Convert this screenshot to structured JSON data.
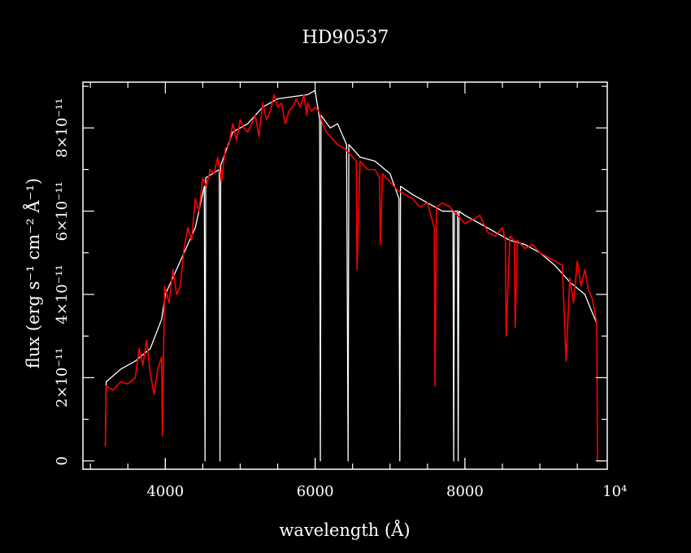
{
  "chart_data": {
    "type": "line",
    "title": "HD90537",
    "xlabel": "wavelength (Å)",
    "ylabel": "flux (erg s⁻¹ cm⁻² Å⁻¹)",
    "xlim": [
      2900,
      9900
    ],
    "ylim": [
      -2e-12,
      9.1e-11
    ],
    "x_ticks": [
      4000,
      6000,
      8000,
      10000
    ],
    "x_tick_labels": [
      "4000",
      "6000",
      "8000",
      "10⁴"
    ],
    "y_ticks": [
      0,
      2e-11,
      4e-11,
      6e-11,
      8e-11
    ],
    "y_tick_labels": [
      "0",
      "2×10⁻¹¹",
      "4×10⁻¹¹",
      "6×10⁻¹¹",
      "8×10⁻¹¹"
    ],
    "grid": false,
    "series": [
      {
        "color": "#ffffff",
        "x": [
          3200,
          3210,
          3400,
          3600,
          3800,
          3950,
          4000,
          4200,
          4400,
          4520,
          4530,
          4540,
          4720,
          4730,
          4740,
          4900,
          5100,
          5300,
          5500,
          5700,
          5900,
          6000,
          6060,
          6070,
          6080,
          6200,
          6300,
          6420,
          6440,
          6450,
          6600,
          6800,
          7000,
          7120,
          7130,
          7140,
          7300,
          7500,
          7700,
          7840,
          7850,
          7860,
          7900,
          7910,
          7920,
          8000,
          8200,
          8400,
          8600,
          8800,
          9000,
          9200,
          9400,
          9600,
          9760
        ],
        "y": [
          3.5e-12,
          1.9e-11,
          2.2e-11,
          2.4e-11,
          2.7e-11,
          3.4e-11,
          4e-11,
          4.8e-11,
          5.6e-11,
          6.6e-11,
          0.0,
          6.8e-11,
          7e-11,
          0.0,
          7.1e-11,
          7.9e-11,
          8.1e-11,
          8.5e-11,
          8.7e-11,
          8.75e-11,
          8.8e-11,
          8.9e-11,
          8.2e-11,
          0.0,
          8.3e-11,
          8e-11,
          8.1e-11,
          7.6e-11,
          0.0,
          7.6e-11,
          7.3e-11,
          7.2e-11,
          6.9e-11,
          6.3e-11,
          0.0,
          6.6e-11,
          6.4e-11,
          6.2e-11,
          6e-11,
          6e-11,
          0.0,
          6e-11,
          6e-11,
          0.0,
          6e-11,
          5.9e-11,
          5.7e-11,
          5.5e-11,
          5.3e-11,
          5.2e-11,
          5e-11,
          4.7e-11,
          4.3e-11,
          4e-11,
          3.3e-11
        ]
      },
      {
        "color": "#ff0000",
        "x": [
          3200,
          3210,
          3300,
          3400,
          3500,
          3600,
          3650,
          3700,
          3750,
          3800,
          3850,
          3900,
          3950,
          3960,
          3990,
          4050,
          4100,
          4150,
          4200,
          4250,
          4300,
          4350,
          4400,
          4450,
          4500,
          4550,
          4600,
          4650,
          4700,
          4750,
          4800,
          4850,
          4900,
          4950,
          5000,
          5050,
          5100,
          5150,
          5200,
          5250,
          5300,
          5350,
          5400,
          5450,
          5500,
          5550,
          5600,
          5650,
          5700,
          5750,
          5800,
          5850,
          5890,
          5900,
          5950,
          6000,
          6050,
          6100,
          6150,
          6200,
          6300,
          6400,
          6500,
          6550,
          6560,
          6600,
          6700,
          6800,
          6860,
          6870,
          6900,
          7000,
          7100,
          7200,
          7300,
          7400,
          7500,
          7590,
          7600,
          7620,
          7700,
          7800,
          7900,
          8000,
          8100,
          8200,
          8300,
          8400,
          8500,
          8540,
          8550,
          8600,
          8660,
          8670,
          8700,
          8800,
          8900,
          9000,
          9100,
          9200,
          9300,
          9350,
          9400,
          9450,
          9500,
          9550,
          9600,
          9650,
          9700,
          9760,
          9770,
          9850
        ],
        "y": [
          3.5e-12,
          1.8e-11,
          1.7e-11,
          1.9e-11,
          1.85e-11,
          2e-11,
          2.7e-11,
          2.3e-11,
          2.9e-11,
          2.1e-11,
          1.6e-11,
          2.2e-11,
          2.5e-11,
          6e-12,
          4.2e-11,
          3.8e-11,
          4.6e-11,
          4e-11,
          4.2e-11,
          5.1e-11,
          5.6e-11,
          5.3e-11,
          6.3e-11,
          6e-11,
          6.8e-11,
          6.6e-11,
          7e-11,
          6.9e-11,
          7.3e-11,
          6.7e-11,
          7.5e-11,
          7.6e-11,
          8.1e-11,
          7.7e-11,
          8.2e-11,
          8e-11,
          7.9e-11,
          8.1e-11,
          8.3e-11,
          7.8e-11,
          8.6e-11,
          8.2e-11,
          8.4e-11,
          8.8e-11,
          8.5e-11,
          8.6e-11,
          8.1e-11,
          8.4e-11,
          8.5e-11,
          8.7e-11,
          8.5e-11,
          8.8e-11,
          8.3e-11,
          8.6e-11,
          8.4e-11,
          8.5e-11,
          8.4e-11,
          8.1e-11,
          7.9e-11,
          7.8e-11,
          7.6e-11,
          7.5e-11,
          7.3e-11,
          7.2e-11,
          4.6e-11,
          7.2e-11,
          7e-11,
          7e-11,
          6.8e-11,
          5.2e-11,
          6.9e-11,
          6.7e-11,
          6.5e-11,
          6.4e-11,
          6.3e-11,
          6.1e-11,
          6.2e-11,
          5.6e-11,
          1.8e-11,
          6.1e-11,
          6.2e-11,
          6.1e-11,
          5.9e-11,
          5.7e-11,
          5.8e-11,
          5.9e-11,
          5.5e-11,
          5.4e-11,
          5.6e-11,
          5.3e-11,
          3e-11,
          5.4e-11,
          5.3e-11,
          3.2e-11,
          5.3e-11,
          5.1e-11,
          5.2e-11,
          5e-11,
          4.9e-11,
          4.8e-11,
          4.7e-11,
          2.4e-11,
          4.4e-11,
          3.8e-11,
          4.8e-11,
          4.2e-11,
          4.6e-11,
          4.1e-11,
          3.9e-11,
          3.3e-11,
          0.0,
          0.0
        ]
      }
    ]
  }
}
